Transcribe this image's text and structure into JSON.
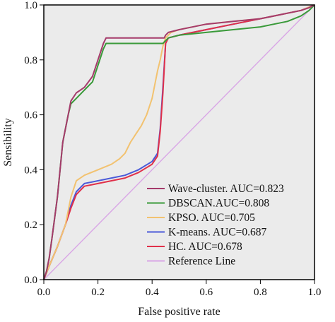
{
  "chart_data": {
    "type": "line",
    "title": "",
    "xlabel": "False positive rate",
    "ylabel": "Sensibility",
    "xlim": [
      0,
      1
    ],
    "ylim": [
      0,
      1
    ],
    "xticks": [
      "0.0",
      "0.2",
      "0.4",
      "0.6",
      "0.8",
      "1.0"
    ],
    "yticks": [
      "0.0",
      "0.2",
      "0.4",
      "0.6",
      "0.8",
      "1.0"
    ],
    "grid": false,
    "legend_position": "bottom-right",
    "series": [
      {
        "name": "Wave-cluster. AUC=0.823",
        "color": "#a53b6b",
        "x": [
          0,
          0.01,
          0.02,
          0.03,
          0.05,
          0.07,
          0.09,
          0.1,
          0.12,
          0.15,
          0.18,
          0.2,
          0.22,
          0.23,
          0.24,
          0.3,
          0.35,
          0.42,
          0.435,
          0.445,
          0.45,
          0.46,
          0.5,
          0.6,
          0.7,
          0.8,
          0.85,
          0.9,
          0.95,
          0.98,
          1.0
        ],
        "y": [
          0,
          0.03,
          0.08,
          0.15,
          0.3,
          0.5,
          0.6,
          0.65,
          0.68,
          0.7,
          0.74,
          0.8,
          0.86,
          0.88,
          0.88,
          0.88,
          0.88,
          0.88,
          0.88,
          0.88,
          0.89,
          0.9,
          0.91,
          0.93,
          0.94,
          0.95,
          0.96,
          0.97,
          0.98,
          0.99,
          1.0
        ]
      },
      {
        "name": "DBSCAN.AUC=0.808",
        "color": "#3a9a3a",
        "x": [
          0,
          0.01,
          0.02,
          0.03,
          0.05,
          0.07,
          0.09,
          0.1,
          0.12,
          0.15,
          0.18,
          0.2,
          0.22,
          0.23,
          0.25,
          0.3,
          0.35,
          0.42,
          0.44,
          0.45,
          0.46,
          0.5,
          0.6,
          0.7,
          0.8,
          0.85,
          0.9,
          0.95,
          0.98,
          1.0
        ],
        "y": [
          0,
          0.03,
          0.08,
          0.15,
          0.3,
          0.5,
          0.6,
          0.64,
          0.66,
          0.69,
          0.72,
          0.78,
          0.84,
          0.86,
          0.86,
          0.86,
          0.86,
          0.86,
          0.86,
          0.87,
          0.88,
          0.89,
          0.9,
          0.91,
          0.92,
          0.93,
          0.94,
          0.96,
          0.98,
          1.0
        ]
      },
      {
        "name": "KPSO. AUC=0.705",
        "color": "#f2c270",
        "x": [
          0,
          0.02,
          0.05,
          0.08,
          0.1,
          0.12,
          0.15,
          0.2,
          0.25,
          0.28,
          0.3,
          0.32,
          0.34,
          0.36,
          0.38,
          0.4,
          0.42,
          0.43,
          0.44,
          0.45,
          0.46,
          0.47,
          0.5,
          0.6,
          0.7,
          0.8,
          0.85,
          0.9,
          0.95,
          1.0
        ],
        "y": [
          0,
          0.05,
          0.12,
          0.2,
          0.3,
          0.36,
          0.38,
          0.4,
          0.42,
          0.44,
          0.46,
          0.5,
          0.53,
          0.56,
          0.6,
          0.66,
          0.76,
          0.8,
          0.85,
          0.88,
          0.89,
          0.9,
          0.91,
          0.93,
          0.94,
          0.95,
          0.96,
          0.97,
          0.98,
          1.0
        ]
      },
      {
        "name": "K-means. AUC=0.687",
        "color": "#4a5ad8",
        "x": [
          0,
          0.02,
          0.05,
          0.08,
          0.1,
          0.12,
          0.15,
          0.2,
          0.25,
          0.3,
          0.35,
          0.4,
          0.42,
          0.43,
          0.44,
          0.45,
          0.46,
          0.5,
          0.6,
          0.7,
          0.8,
          0.85,
          0.9,
          0.95,
          1.0
        ],
        "y": [
          0,
          0.05,
          0.12,
          0.2,
          0.27,
          0.32,
          0.35,
          0.36,
          0.37,
          0.38,
          0.4,
          0.43,
          0.46,
          0.55,
          0.7,
          0.86,
          0.88,
          0.89,
          0.91,
          0.93,
          0.95,
          0.96,
          0.97,
          0.98,
          1.0
        ]
      },
      {
        "name": "HC. AUC=0.678",
        "color": "#e0304a",
        "x": [
          0,
          0.02,
          0.05,
          0.08,
          0.1,
          0.12,
          0.15,
          0.2,
          0.25,
          0.3,
          0.35,
          0.4,
          0.42,
          0.43,
          0.44,
          0.45,
          0.46,
          0.5,
          0.6,
          0.7,
          0.8,
          0.85,
          0.9,
          0.95,
          1.0
        ],
        "y": [
          0,
          0.05,
          0.12,
          0.2,
          0.26,
          0.31,
          0.34,
          0.35,
          0.36,
          0.37,
          0.39,
          0.42,
          0.45,
          0.54,
          0.68,
          0.86,
          0.88,
          0.89,
          0.91,
          0.93,
          0.95,
          0.96,
          0.97,
          0.98,
          1.0
        ]
      },
      {
        "name": "Reference Line",
        "color": "#d9a6e6",
        "x": [
          0,
          1
        ],
        "y": [
          0,
          1
        ]
      }
    ]
  },
  "colors": {
    "plot_background": "#ebebeb",
    "axis": "#000000"
  }
}
